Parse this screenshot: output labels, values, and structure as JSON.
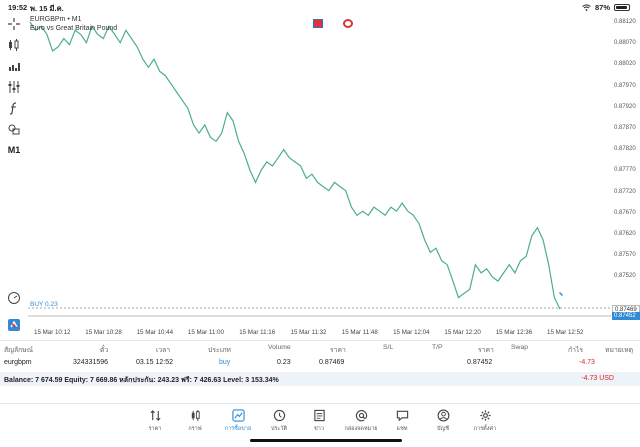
{
  "status": {
    "time": "19:52",
    "date": "พ. 15 มี.ค.",
    "battery": "87%"
  },
  "chart": {
    "symbol_line": "EURGBPm • M1",
    "description": "Euro vs Great Britain Pound",
    "buy_label": "BUY 0.23",
    "ask_price": "0.87469",
    "bid_price": "0.87452",
    "price_ticks": [
      "0.88120",
      "0.88070",
      "0.88020",
      "0.87970",
      "0.87920",
      "0.87870",
      "0.87820",
      "0.87770",
      "0.87720",
      "0.87670",
      "0.87620",
      "0.87570",
      "0.87520"
    ],
    "time_ticks": [
      "15 Mar 10:12",
      "15 Mar 10:28",
      "15 Mar 10:44",
      "15 Mar 11:00",
      "15 Mar 11:16",
      "15 Mar 11:32",
      "15 Mar 11:48",
      "15 Mar 12:04",
      "15 Mar 12:20",
      "15 Mar 12:36",
      "15 Mar 12:52"
    ],
    "line_color": "#4caf84"
  },
  "chart_data": {
    "type": "line",
    "title": "EURGBPm • M1",
    "ylim": [
      0.8744,
      0.8816
    ],
    "series": [
      {
        "name": "EURGBPm",
        "values": [
          0.8815,
          0.8813,
          0.8814,
          0.8812,
          0.8808,
          0.8809,
          0.8811,
          0.88095,
          0.8813,
          0.8812,
          0.881,
          0.8814,
          0.8812,
          0.8811,
          0.8814,
          0.8812,
          0.881,
          0.8813,
          0.8811,
          0.8809,
          0.8806,
          0.8804,
          0.8806,
          0.8803,
          0.8802,
          0.88,
          0.8798,
          0.8796,
          0.8794,
          0.879,
          0.8788,
          0.879,
          0.8787,
          0.8786,
          0.8788,
          0.8793,
          0.8791,
          0.8786,
          0.8783,
          0.8779,
          0.8776,
          0.8779,
          0.8781,
          0.878,
          0.8782,
          0.8784,
          0.8782,
          0.8781,
          0.878,
          0.8777,
          0.8778,
          0.8776,
          0.8775,
          0.8774,
          0.8776,
          0.8775,
          0.8774,
          0.877,
          0.8768,
          0.8769,
          0.8768,
          0.877,
          0.8769,
          0.8768,
          0.877,
          0.8769,
          0.8771,
          0.8769,
          0.8768,
          0.8766,
          0.8762,
          0.8759,
          0.876,
          0.8757,
          0.8756,
          0.8752,
          0.8748,
          0.8749,
          0.875,
          0.8756,
          0.8754,
          0.8755,
          0.8753,
          0.8752,
          0.8754,
          0.8756,
          0.8754,
          0.8757,
          0.8758,
          0.8763,
          0.8765,
          0.8762,
          0.8756,
          0.8748,
          0.87452
        ]
      }
    ]
  },
  "trade_table": {
    "headers": [
      "สัญลักษณ์",
      "ตั๋ว",
      "เวลา",
      "ประเภท",
      "Volume",
      "ราคา",
      "S/L",
      "T/P",
      "ราคา",
      "Swap",
      "กำไร",
      "หมายเหตุ"
    ],
    "row": {
      "symbol": "eurgbpm",
      "ticket": "324331596",
      "time": "03.15 12:52",
      "type": "buy",
      "volume": "0.23",
      "open_price": "0.87469",
      "current_price": "0.87452",
      "profit": "-4.73"
    },
    "balance_text": "Balance: 7 674.59 Equity: 7 669.86 หลักประกัน: 243.23 ฟรี: 7 426.63 Level: 3 153.34%",
    "total": "-4.73  USD"
  },
  "nav": {
    "items": [
      "ราคา",
      "กราฟ",
      "การซื้อขาย",
      "ประวัติ",
      "ข่าว",
      "กล่องจดหมาย",
      "แชท",
      "บัญชี",
      "การตั้งค่า"
    ]
  }
}
